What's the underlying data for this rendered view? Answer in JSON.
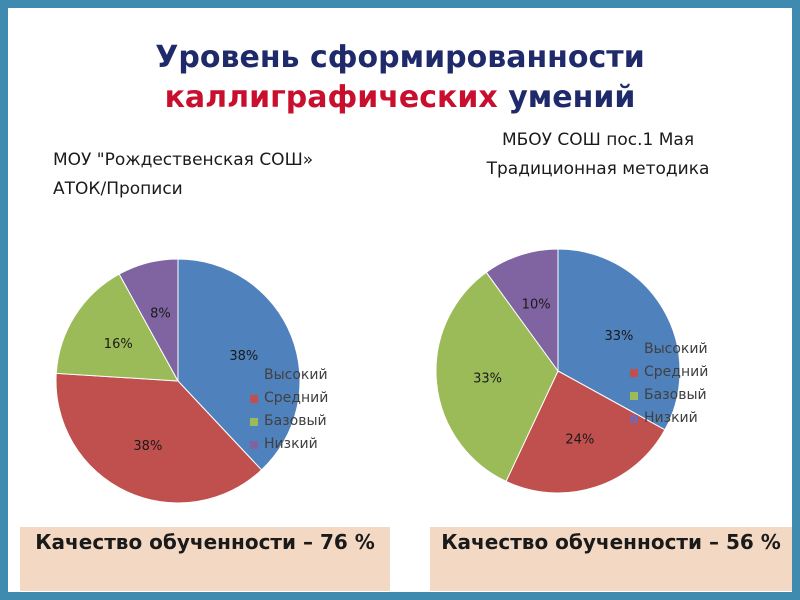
{
  "title": {
    "line1": "Уровень сформированности",
    "line2_highlight": "каллиграфических",
    "line2_rest": "умений"
  },
  "charts": {
    "left": {
      "subtitle_line1": "МОУ \"Рождественская СОШ»",
      "subtitle_line2": "АТОК/Прописи",
      "quality": "Качество обученности – 76 %"
    },
    "right": {
      "subtitle_line1": "МБОУ СОШ пос.1 Мая",
      "subtitle_line2": "Традиционная методика",
      "quality": "Качество обученности – 56 %"
    }
  },
  "legend": [
    "Высокий",
    "Средний",
    "Базовый",
    "Низкий"
  ],
  "colors": {
    "Высокий": "#4f81bd",
    "Средний": "#c0504d",
    "Базовый": "#9bbb59",
    "Низкий": "#8064a2",
    "title_main": "#1f2a6b",
    "title_highlight": "#c8102e",
    "quality_box": "#f3d9c4",
    "frame": "#3f8bb0"
  },
  "chart_data": [
    {
      "type": "pie",
      "title": "МОУ \"Рождественская СОШ» АТОК/Прописи",
      "categories": [
        "Высокий",
        "Средний",
        "Базовый",
        "Низкий"
      ],
      "values": [
        38,
        38,
        16,
        8
      ],
      "labels": [
        "38%",
        "38%",
        "16%",
        "8%"
      ]
    },
    {
      "type": "pie",
      "title": "МБОУ СОШ пос.1 Мая Традиционная методика",
      "categories": [
        "Высокий",
        "Средний",
        "Базовый",
        "Низкий"
      ],
      "values": [
        33,
        24,
        33,
        10
      ],
      "labels": [
        "33%",
        "24%",
        "33%",
        "10%"
      ]
    }
  ]
}
